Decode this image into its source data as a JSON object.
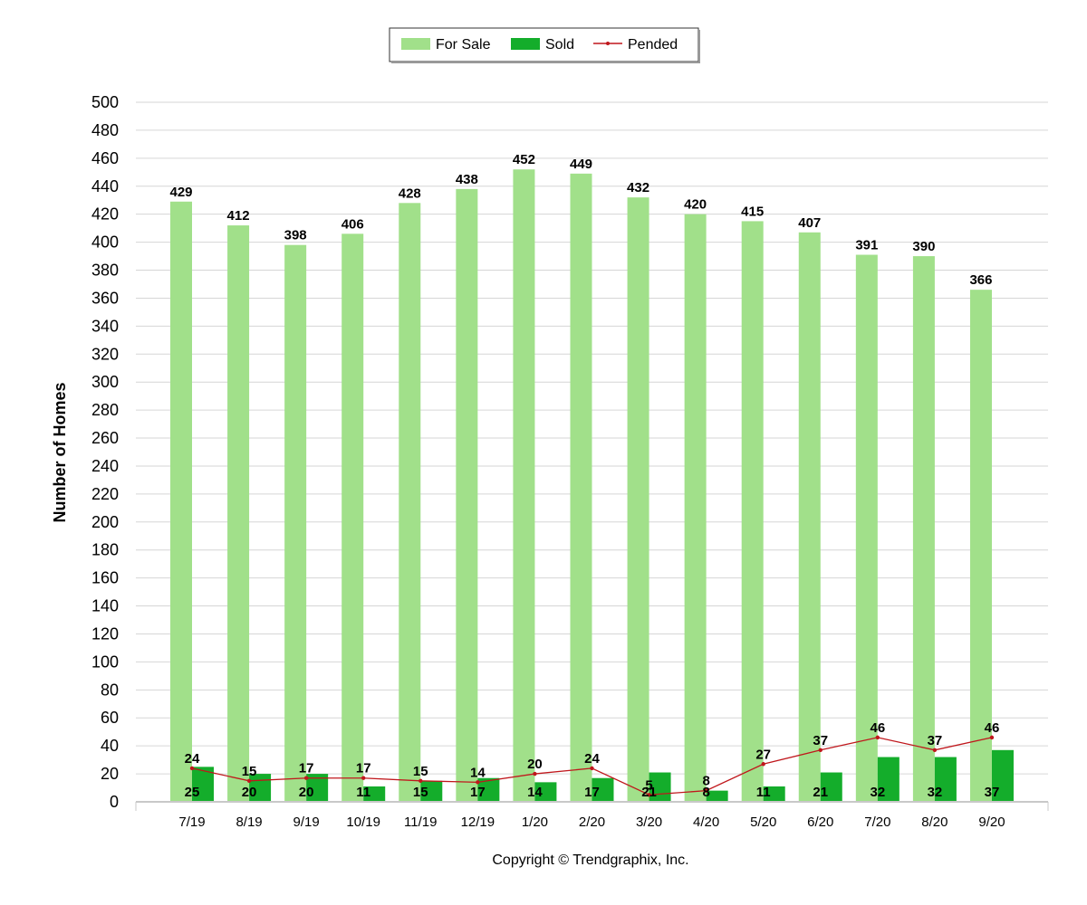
{
  "chart_data": {
    "type": "bar",
    "categories": [
      "7/19",
      "8/19",
      "9/19",
      "10/19",
      "11/19",
      "12/19",
      "1/20",
      "2/20",
      "3/20",
      "4/20",
      "5/20",
      "6/20",
      "7/20",
      "8/20",
      "9/20"
    ],
    "series": [
      {
        "name": "For Sale",
        "kind": "bar",
        "color": "#a1e08a",
        "values": [
          429,
          412,
          398,
          406,
          428,
          438,
          452,
          449,
          432,
          420,
          415,
          407,
          391,
          390,
          366
        ]
      },
      {
        "name": "Sold",
        "kind": "bar",
        "color": "#14ad2b",
        "values": [
          25,
          20,
          20,
          11,
          15,
          17,
          14,
          17,
          21,
          8,
          11,
          21,
          32,
          32,
          37
        ]
      },
      {
        "name": "Pended",
        "kind": "line",
        "color": "#c0171c",
        "values": [
          24,
          15,
          17,
          17,
          15,
          14,
          20,
          24,
          5,
          8,
          27,
          37,
          46,
          37,
          46
        ]
      }
    ],
    "ylabel": "Number of Homes",
    "xlabel": "",
    "ylim": [
      0,
      500
    ],
    "ytick_step": 20,
    "grid": true,
    "legend_position": "top-center"
  },
  "footer": {
    "copyright": "Copyright © Trendgraphix, Inc."
  }
}
